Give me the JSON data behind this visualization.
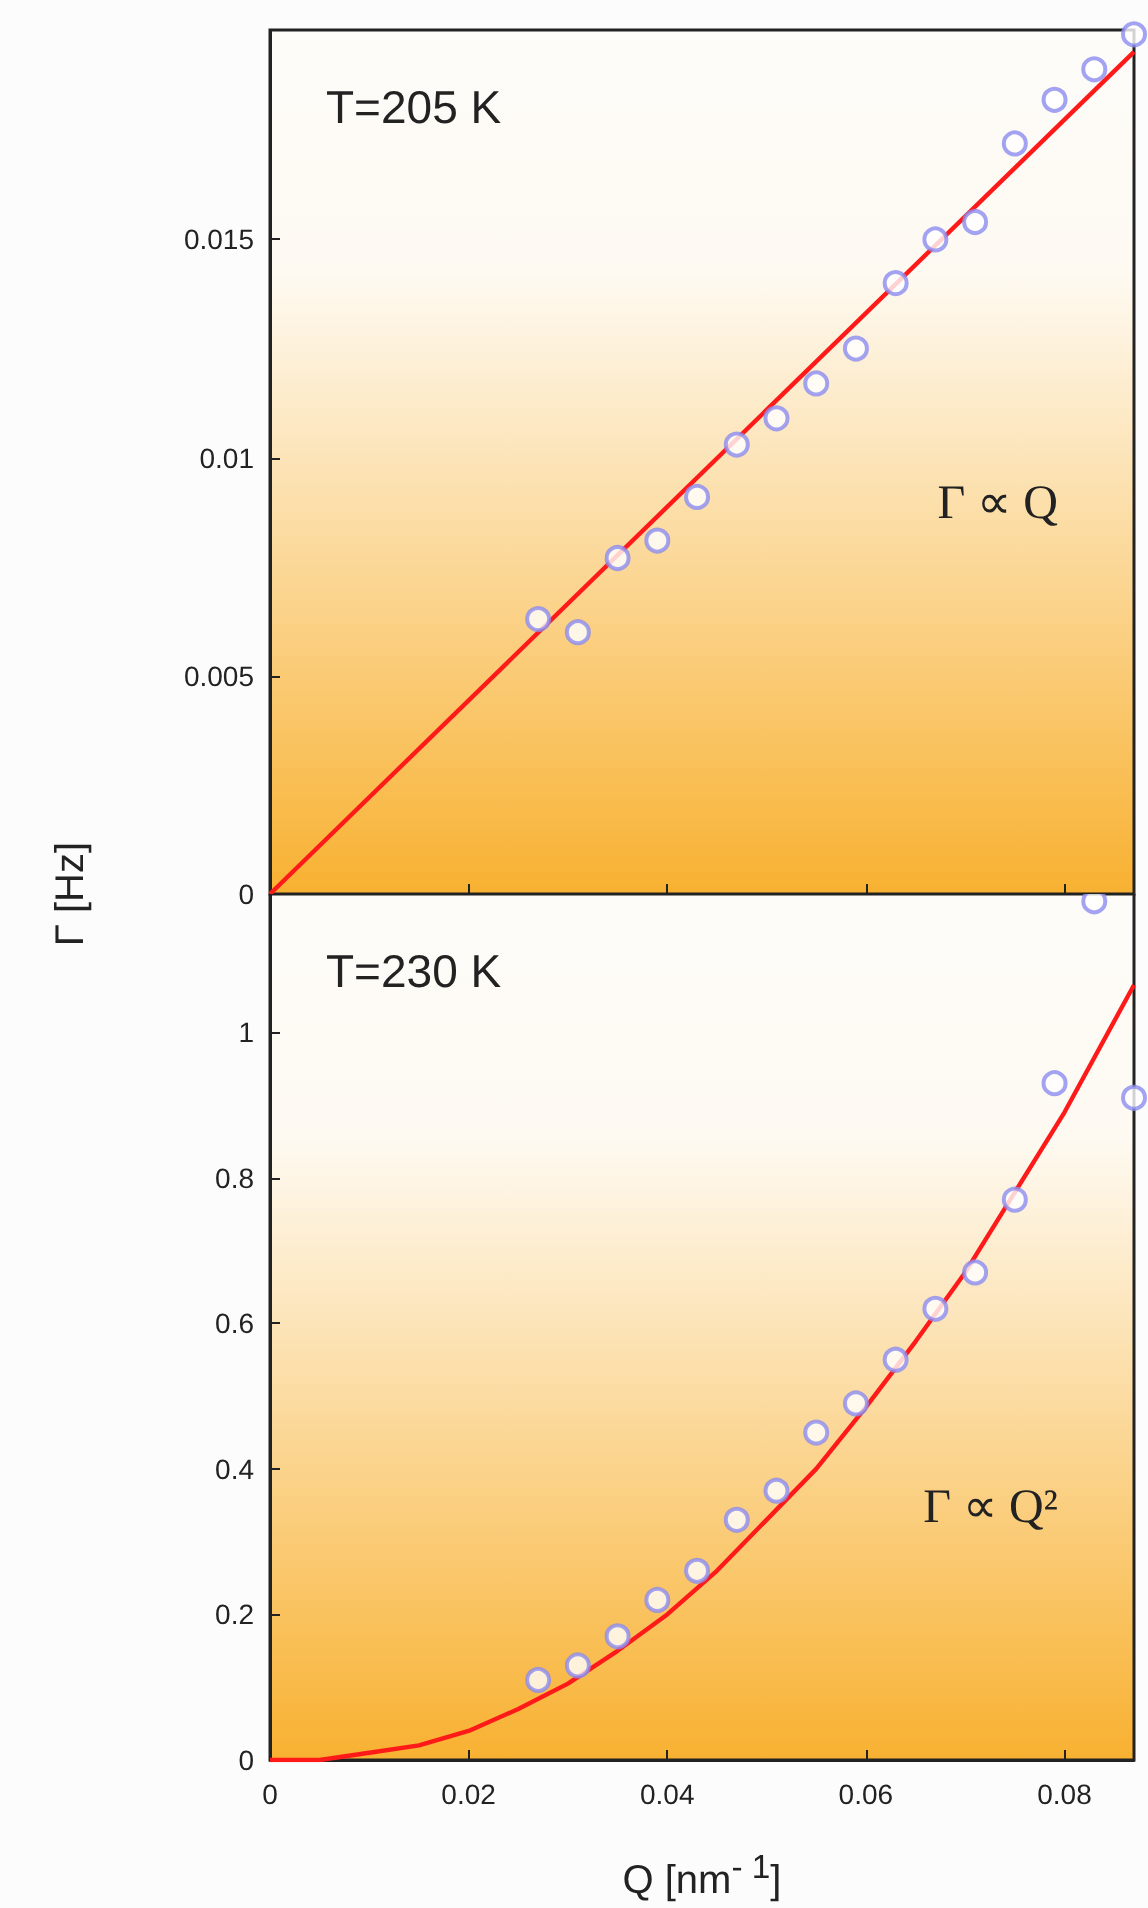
{
  "chart_data": [
    {
      "type": "scatter",
      "title": "T=205 K",
      "ylabel": "Γ [Hz]",
      "annotations": [
        "Γ ∝ Q"
      ],
      "x": [
        0.027,
        0.031,
        0.035,
        0.039,
        0.043,
        0.047,
        0.051,
        0.055,
        0.059,
        0.063,
        0.067,
        0.071,
        0.075,
        0.079,
        0.083,
        0.087
      ],
      "series": [
        {
          "color": "#8c8cf0",
          "values": [
            0.0063,
            0.006,
            0.0077,
            0.0081,
            0.0091,
            0.0103,
            0.0109,
            0.0117,
            0.0125,
            0.014,
            0.015,
            0.0154,
            0.0172,
            0.0182,
            0.0189,
            0.0197
          ]
        },
        {
          "type": "line",
          "color": "#ff1a1a",
          "marker": "none",
          "x": [
            0,
            0.087
          ],
          "values": [
            0,
            0.0193
          ]
        }
      ],
      "xlim": [
        0,
        0.087
      ],
      "xticks": [
        0,
        0.02,
        0.04,
        0.06,
        0.08
      ],
      "ylim": [
        0,
        0.0198
      ],
      "yticks": [
        0,
        0.005,
        0.01,
        0.015
      ],
      "tick_labels": "y",
      "marker": "circle"
    },
    {
      "type": "scatter",
      "title": "T=230 K",
      "xlabel": "Q [nm$^{- 1}$]",
      "annotations": [
        "Γ ∝ Q²"
      ],
      "x": [
        0.027,
        0.031,
        0.035,
        0.039,
        0.043,
        0.047,
        0.051,
        0.055,
        0.059,
        0.063,
        0.067,
        0.071,
        0.075,
        0.079,
        0.083,
        0.087
      ],
      "series": [
        {
          "color": "#8c8cf0",
          "values": [
            0.11,
            0.13,
            0.17,
            0.22,
            0.26,
            0.33,
            0.37,
            0.45,
            0.49,
            0.55,
            0.62,
            0.67,
            0.77,
            0.93,
            1.18,
            0.91
          ]
        },
        {
          "type": "line",
          "color": "#ff1a1a",
          "marker": "none",
          "x": [
            0,
            0.005,
            0.01,
            0.015,
            0.02,
            0.025,
            0.03,
            0.035,
            0.04,
            0.045,
            0.05,
            0.055,
            0.06,
            0.065,
            0.07,
            0.075,
            0.08,
            0.087
          ],
          "values": [
            0,
            0,
            0.01,
            0.02,
            0.04,
            0.07,
            0.105,
            0.15,
            0.2,
            0.26,
            0.33,
            0.4,
            0.485,
            0.575,
            0.67,
            0.78,
            0.89,
            1.065
          ]
        }
      ],
      "xlim": [
        0,
        0.087
      ],
      "xticks": [
        0,
        0.02,
        0.04,
        0.06,
        0.08
      ],
      "ylim": [
        0,
        1.19
      ],
      "yticks": [
        0,
        0.2,
        0.4,
        0.6,
        0.8,
        1
      ],
      "marker": "circle"
    }
  ]
}
